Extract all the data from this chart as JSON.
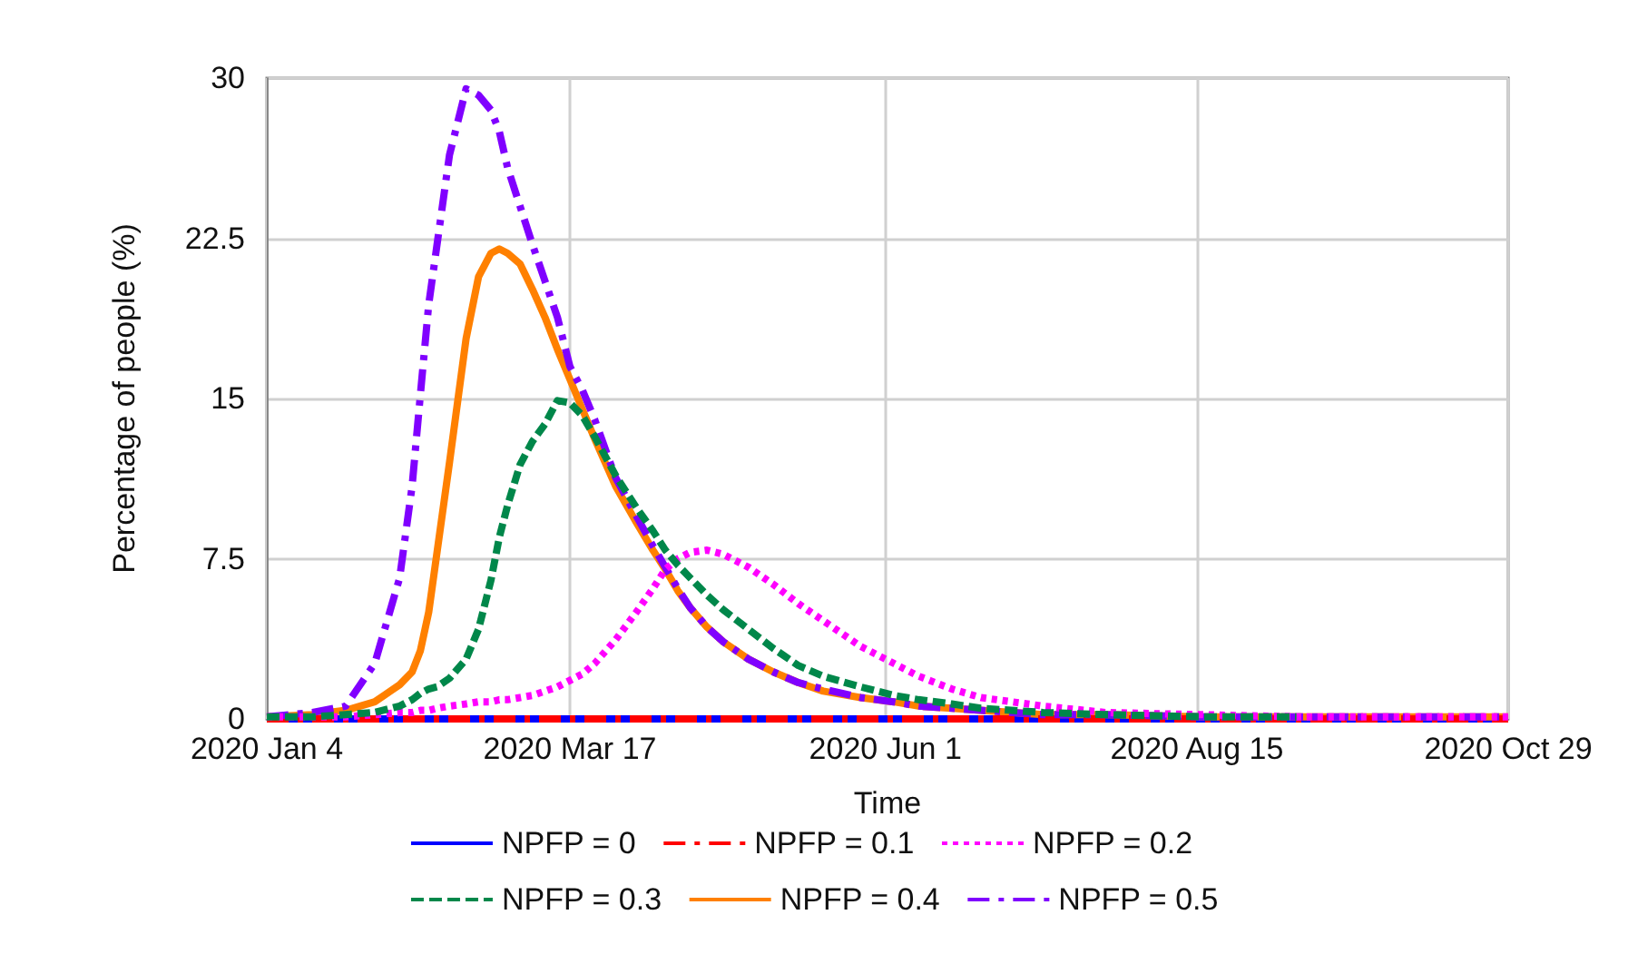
{
  "chart_data": {
    "type": "line",
    "xlabel": "Time",
    "ylabel": "Percentage of people (%)",
    "x": [
      "2020-01-04",
      "2020-01-15",
      "2020-01-23",
      "2020-01-30",
      "2020-02-05",
      "2020-02-08",
      "2020-02-10",
      "2020-02-12",
      "2020-02-14",
      "2020-02-17",
      "2020-02-21",
      "2020-02-24",
      "2020-02-27",
      "2020-02-29",
      "2020-03-02",
      "2020-03-05",
      "2020-03-08",
      "2020-03-11",
      "2020-03-14",
      "2020-03-17",
      "2020-03-20",
      "2020-03-23",
      "2020-03-28",
      "2020-04-02",
      "2020-04-06",
      "2020-04-09",
      "2020-04-12",
      "2020-04-15",
      "2020-04-19",
      "2020-04-23",
      "2020-04-29",
      "2020-05-05",
      "2020-05-11",
      "2020-05-17",
      "2020-05-26",
      "2020-06-03",
      "2020-06-09",
      "2020-06-17",
      "2020-06-24",
      "2020-07-09",
      "2020-07-24",
      "2020-08-16",
      "2020-09-08",
      "2020-09-30",
      "2020-10-29"
    ],
    "series": [
      {
        "name": "NPFP = 0",
        "color": "#0000ff",
        "line_style": "solid",
        "x": [
          "2020-01-04",
          "2020-10-29"
        ],
        "values": [
          0,
          0
        ]
      },
      {
        "name": "NPFP = 0.1",
        "color": "#ff0000",
        "line_style": "dashdot",
        "x": [
          "2020-01-04",
          "2020-10-29"
        ],
        "values": [
          0,
          0
        ]
      },
      {
        "name": "NPFP = 0.2",
        "color": "#ff00ff",
        "line_style": "dotted",
        "values": [
          0.1,
          0.1,
          0.1,
          0.2,
          0.3,
          0.3,
          0.4,
          0.4,
          0.5,
          0.6,
          0.7,
          0.8,
          0.8,
          0.9,
          0.9,
          1.0,
          1.1,
          1.3,
          1.5,
          1.8,
          2.1,
          2.6,
          3.7,
          5.0,
          6.1,
          7.0,
          7.5,
          7.8,
          7.9,
          7.7,
          7.1,
          6.3,
          5.4,
          4.6,
          3.4,
          2.6,
          2.0,
          1.4,
          1.0,
          0.6,
          0.3,
          0.2,
          0.1,
          0.1,
          0.1
        ]
      },
      {
        "name": "NPFP = 0.3",
        "color": "#00874a",
        "line_style": "dashed",
        "values": [
          0.1,
          0.1,
          0.2,
          0.3,
          0.6,
          0.9,
          1.2,
          1.4,
          1.5,
          1.9,
          2.8,
          4.2,
          6.5,
          8.5,
          10.0,
          11.9,
          13.0,
          13.8,
          14.9,
          14.8,
          14.2,
          13.2,
          11.4,
          9.9,
          8.8,
          7.9,
          7.2,
          6.6,
          5.8,
          5.1,
          4.2,
          3.3,
          2.5,
          2.0,
          1.5,
          1.1,
          0.9,
          0.7,
          0.5,
          0.3,
          0.2,
          0.1,
          0.1,
          null,
          null
        ]
      },
      {
        "name": "NPFP = 0.4",
        "color": "#ff8000",
        "line_style": "solid",
        "values": [
          0.1,
          0.2,
          0.4,
          0.8,
          1.6,
          2.2,
          3.2,
          5.0,
          7.8,
          12.0,
          17.8,
          20.7,
          21.8,
          22.0,
          21.8,
          21.3,
          20.1,
          18.8,
          17.3,
          15.9,
          14.5,
          13.1,
          10.9,
          9.2,
          7.9,
          7.0,
          6.0,
          5.2,
          4.3,
          3.6,
          2.8,
          2.2,
          1.7,
          1.3,
          1.0,
          0.8,
          0.6,
          0.5,
          0.4,
          0.2,
          0.2,
          0.1,
          0.1,
          0.1,
          0.1
        ]
      },
      {
        "name": "NPFP = 0.5",
        "color": "#8000ff",
        "line_style": "dashdot",
        "values": [
          0.1,
          0.3,
          0.6,
          2.6,
          6.6,
          10.9,
          15.2,
          19.4,
          22.2,
          26.4,
          29.5,
          29.2,
          28.5,
          27.5,
          25.8,
          24.0,
          22.2,
          20.5,
          18.8,
          16.5,
          15.4,
          14.0,
          11.3,
          9.5,
          8.1,
          7.1,
          6.1,
          5.2,
          4.3,
          3.6,
          2.8,
          2.2,
          1.7,
          1.4,
          1.0,
          0.8,
          0.6,
          0.5,
          0.4,
          0.2,
          0.2,
          0.1,
          0.1,
          0.1,
          0.1
        ]
      }
    ],
    "xlim": [
      "2020-01-04",
      "2020-10-29"
    ],
    "xticks": [
      {
        "value": "2020-01-04",
        "label": "2020 Jan 4"
      },
      {
        "value": "2020-03-17",
        "label": "2020 Mar 17"
      },
      {
        "value": "2020-06-01",
        "label": "2020 Jun 1"
      },
      {
        "value": "2020-08-15",
        "label": "2020 Aug 15"
      },
      {
        "value": "2020-10-29",
        "label": "2020 Oct 29"
      }
    ],
    "ylim": [
      0,
      30
    ],
    "yticks": [
      0,
      7.5,
      15,
      22.5,
      30
    ],
    "grid": true,
    "legend": "bottom",
    "marker": "none"
  }
}
